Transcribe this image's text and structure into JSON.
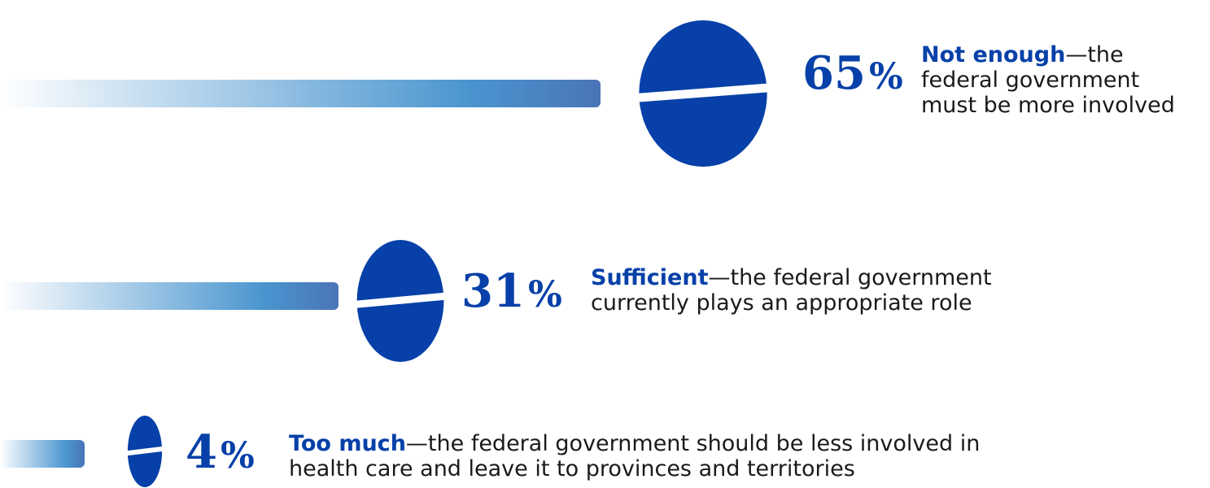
{
  "colors": {
    "pill": "#0640a8",
    "bar_start": "#ffffff",
    "bar_mid": "#4a95cf",
    "bar_end": "#4a74b8",
    "label": "#0640a8",
    "text": "#1a1a1a"
  },
  "chart_data": {
    "type": "bar",
    "categories": [
      "Not enough",
      "Sufficient",
      "Too much"
    ],
    "values": [
      65,
      31,
      4
    ],
    "unit": "%",
    "items": [
      {
        "value": 65,
        "value_text": "65",
        "unit_text": "%",
        "label": "Not enough",
        "text_lines": [
          "—the",
          "federal government",
          "must be more involved"
        ]
      },
      {
        "value": 31,
        "value_text": "31",
        "unit_text": "%",
        "label": "Sufficient",
        "text_lines": [
          "—the federal government",
          "currently plays an appropriate role"
        ]
      },
      {
        "value": 4,
        "value_text": "4",
        "unit_text": "%",
        "label": "Too much",
        "text_lines": [
          "—the federal government should be less involved in",
          "health care and leave it to provinces and territories"
        ]
      }
    ]
  }
}
